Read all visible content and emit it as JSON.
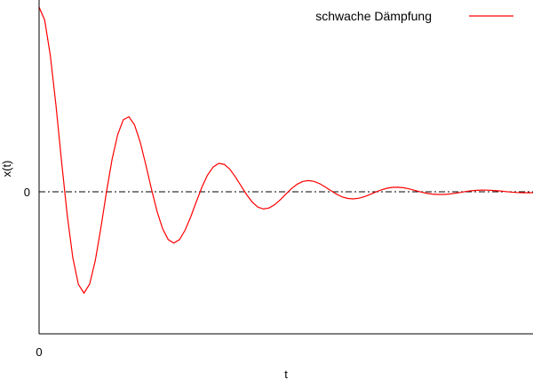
{
  "chart_data": {
    "type": "line",
    "title": "",
    "xlabel": "t",
    "ylabel": "x(t)",
    "xlim": [
      0,
      22
    ],
    "ylim": [
      -1.0,
      1.35
    ],
    "x_ticks": [
      {
        "value": 0,
        "label": "0"
      }
    ],
    "y_ticks": [
      {
        "value": 0,
        "label": "0"
      }
    ],
    "zero_line": {
      "y": 0,
      "style": "dash-dot",
      "color": "#000000"
    },
    "grid": false,
    "legend": {
      "position": "top-right"
    },
    "colors": {
      "series": "#ff0000",
      "axis": "#000000"
    },
    "series": [
      {
        "name": "schwache Dämpfung",
        "color": "#ff0000",
        "x": [
          0.0,
          0.25,
          0.5,
          0.75,
          1.0,
          1.25,
          1.5,
          1.75,
          2.0,
          2.25,
          2.5,
          2.75,
          3.0,
          3.25,
          3.5,
          3.75,
          4.0,
          4.25,
          4.5,
          4.75,
          5.0,
          5.25,
          5.5,
          5.75,
          6.0,
          6.25,
          6.5,
          6.75,
          7.0,
          7.25,
          7.5,
          7.75,
          8.0,
          8.25,
          8.5,
          8.75,
          9.0,
          9.25,
          9.5,
          9.75,
          10.0,
          10.25,
          10.5,
          10.75,
          11.0,
          11.25,
          11.5,
          11.75,
          12.0,
          12.25,
          12.5,
          12.75,
          13.0,
          13.25,
          13.5,
          13.75,
          14.0,
          14.25,
          14.5,
          14.75,
          15.0,
          15.25,
          15.5,
          15.75,
          16.0,
          16.25,
          16.5,
          16.75,
          17.0,
          17.25,
          17.5,
          17.75,
          18.0,
          18.25,
          18.5,
          18.75,
          19.0,
          19.25,
          19.5,
          19.75,
          20.0,
          20.25,
          20.5,
          20.75,
          21.0,
          21.25,
          21.5,
          21.75,
          22.0
        ],
        "y": [
          1.3,
          1.209,
          0.962,
          0.609,
          0.214,
          -0.16,
          -0.461,
          -0.651,
          -0.713,
          -0.65,
          -0.486,
          -0.256,
          -0.004,
          0.226,
          0.403,
          0.507,
          0.528,
          0.472,
          0.353,
          0.194,
          0.022,
          -0.136,
          -0.259,
          -0.336,
          -0.361,
          -0.337,
          -0.271,
          -0.178,
          -0.072,
          0.031,
          0.116,
          0.174,
          0.2,
          0.193,
          0.159,
          0.104,
          0.04,
          -0.022,
          -0.074,
          -0.108,
          -0.121,
          -0.114,
          -0.09,
          -0.055,
          -0.015,
          0.023,
          0.054,
          0.073,
          0.079,
          0.073,
          0.057,
          0.034,
          0.008,
          -0.017,
          -0.036,
          -0.047,
          -0.05,
          -0.045,
          -0.034,
          -0.018,
          -0.001,
          0.014,
          0.025,
          0.031,
          0.032,
          0.028,
          0.02,
          0.009,
          -0.001,
          -0.01,
          -0.016,
          -0.019,
          -0.019,
          -0.016,
          -0.011,
          -0.005,
          0.002,
          0.007,
          0.01,
          0.012,
          0.011,
          0.009,
          0.006,
          0.002,
          -0.002,
          -0.005,
          -0.006,
          -0.007,
          -0.006
        ]
      }
    ]
  }
}
